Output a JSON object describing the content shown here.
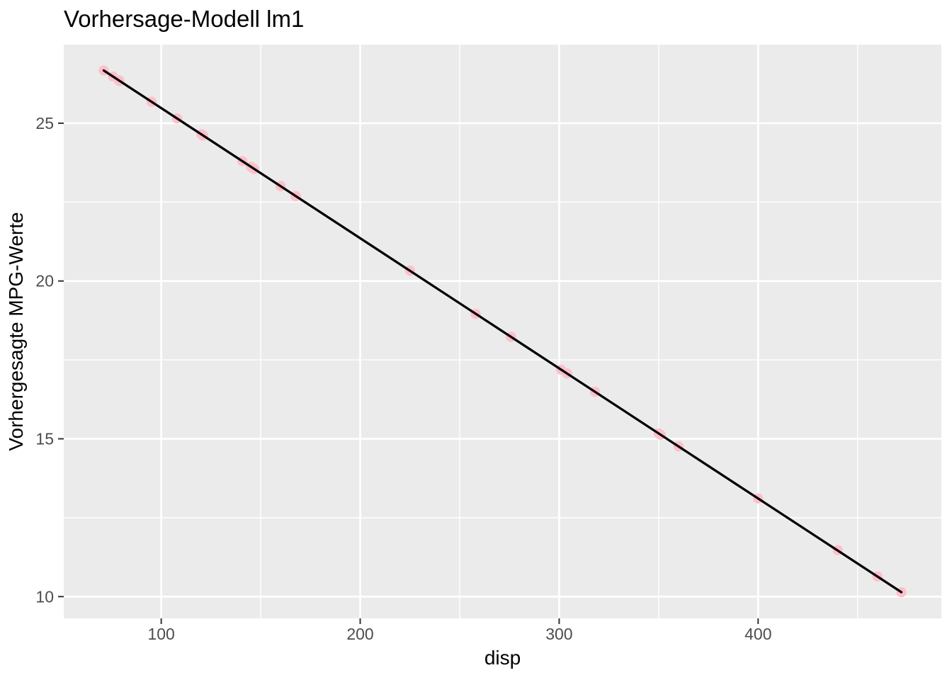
{
  "chart_data": {
    "type": "scatter",
    "title": "Vorhersage-Modell lm1",
    "xlabel": "disp",
    "ylabel": "Vorhergesagte MPG-Werte",
    "xlim": [
      51.0,
      492.1
    ],
    "ylim": [
      9.31,
      27.49
    ],
    "x_ticks": [
      100,
      200,
      300,
      400
    ],
    "y_ticks": [
      10,
      15,
      20,
      25
    ],
    "x_minor_ticks": [
      150,
      250,
      350,
      450
    ],
    "y_minor_ticks": [
      12.5,
      17.5,
      22.5,
      27.5
    ],
    "grid": "on",
    "legend": "none",
    "colors": {
      "panel_background": "#EBEBEB",
      "grid": "#FFFFFF",
      "point": "#FFC0CB",
      "line": "#000000",
      "tick_mark": "#333333",
      "tick_label": "#4D4D4D"
    },
    "series": [
      {
        "name": "predicted-points",
        "type": "scatter",
        "x": [
          71.1,
          75.7,
          78.7,
          79,
          95.1,
          108,
          120.1,
          120.3,
          121,
          140.8,
          145,
          146.7,
          160,
          160,
          167.6,
          167.6,
          225,
          258,
          275.8,
          275.8,
          275.8,
          301,
          304,
          318,
          350,
          351,
          360,
          360,
          400,
          440,
          460,
          472
        ],
        "y": [
          26.67,
          26.48,
          26.36,
          26.34,
          25.68,
          25.15,
          24.65,
          24.64,
          24.61,
          23.8,
          23.62,
          23.55,
          23.01,
          23.01,
          22.69,
          22.69,
          20.33,
          18.96,
          18.23,
          18.23,
          18.23,
          17.19,
          17.07,
          16.49,
          15.17,
          15.13,
          14.76,
          14.76,
          13.11,
          11.47,
          10.64,
          10.14
        ]
      },
      {
        "name": "regression-line",
        "type": "line",
        "x": [
          71.1,
          472
        ],
        "y": [
          26.67,
          10.14
        ]
      }
    ]
  }
}
